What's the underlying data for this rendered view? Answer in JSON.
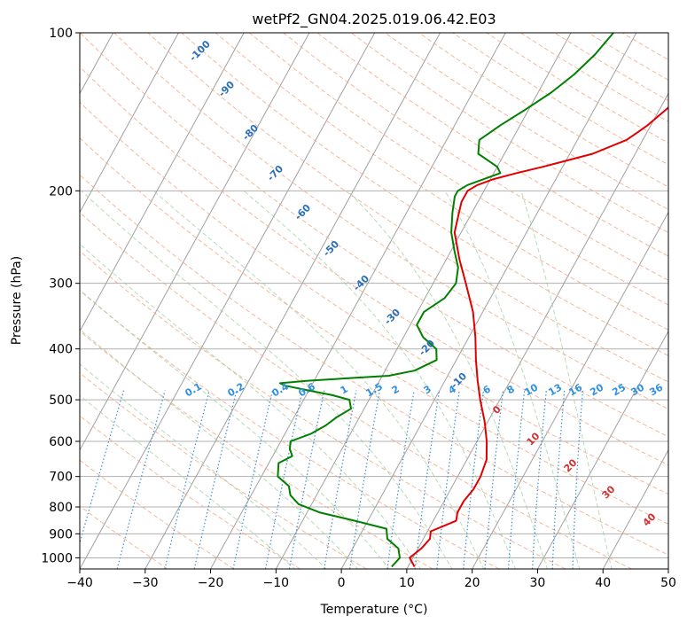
{
  "chart_data": {
    "type": "line",
    "title": "wetPf2_GN04.2025.019.06.42.E03",
    "xlabel": "Temperature (°C)",
    "ylabel": "Pressure (hPa)",
    "xlim": [
      -40,
      50
    ],
    "ylim": [
      1050,
      100
    ],
    "y_scale": "log",
    "x_ticks": [
      "−40",
      "−30",
      "−20",
      "−10",
      "0",
      "10",
      "20",
      "30",
      "40",
      "50"
    ],
    "y_ticks": [
      "100",
      "200",
      "300",
      "400",
      "500",
      "600",
      "700",
      "800",
      "900",
      "1000"
    ],
    "grid": true,
    "isotherm_labels": [
      "-100",
      "-90",
      "-80",
      "-70",
      "-60",
      "-50",
      "-40",
      "-30",
      "-20",
      "-10"
    ],
    "mixing_ratio_labels": [
      "0.1",
      "0.2",
      "0.4",
      "0.6",
      "1",
      "1.5",
      "2",
      "3",
      "4",
      "6",
      "8",
      "10",
      "13",
      "16",
      "20",
      "25",
      "30",
      "36"
    ],
    "warm_isotherm_labels": [
      "0",
      "10",
      "20",
      "30",
      "40"
    ],
    "series": [
      {
        "color": "#e00000",
        "pressure": [
          1040,
          1000,
          960,
          920,
          890,
          870,
          850,
          820,
          780,
          740,
          700,
          650,
          600,
          550,
          500,
          460,
          420,
          380,
          340,
          300,
          270,
          240,
          220,
          210,
          200,
          195,
          190,
          185,
          180,
          170,
          160,
          155,
          150,
          140,
          130,
          120,
          110,
          100
        ],
        "values": [
          11,
          9.5,
          10.5,
          11,
          10.5,
          12,
          13.5,
          13,
          13,
          13.5,
          13.5,
          13,
          11.5,
          9.5,
          7,
          5,
          3,
          1,
          -1.5,
          -5,
          -8,
          -11,
          -12,
          -12.5,
          -12.5,
          -11.5,
          -9.5,
          -6.5,
          -3,
          3.5,
          7.5,
          8.5,
          9.5,
          11,
          12.5,
          13.5,
          14,
          14.5
        ]
      },
      {
        "color": "#008000",
        "pressure": [
          1040,
          1000,
          960,
          920,
          880,
          850,
          820,
          790,
          760,
          730,
          700,
          680,
          660,
          640,
          620,
          600,
          580,
          560,
          540,
          520,
          500,
          490,
          480,
          470,
          465,
          460,
          455,
          450,
          440,
          420,
          400,
          380,
          360,
          340,
          320,
          300,
          280,
          260,
          240,
          220,
          205,
          200,
          195,
          190,
          185,
          180,
          170,
          160,
          150,
          140,
          130,
          120,
          110,
          100
        ],
        "values": [
          7.5,
          8,
          7,
          4.5,
          3.5,
          -2,
          -8,
          -12,
          -14,
          -15,
          -17.5,
          -18,
          -18.5,
          -17,
          -18,
          -18.5,
          -16,
          -14.5,
          -13.5,
          -12,
          -13,
          -16,
          -20,
          -24,
          -25,
          -21,
          -15,
          -9,
          -5.5,
          -3,
          -4,
          -7,
          -9,
          -9,
          -7,
          -6.5,
          -7.5,
          -9.5,
          -11.5,
          -13,
          -14,
          -14,
          -13,
          -11,
          -9,
          -10,
          -14,
          -15,
          -13,
          -10.5,
          -8,
          -6,
          -4.5,
          -3.5
        ]
      }
    ]
  }
}
